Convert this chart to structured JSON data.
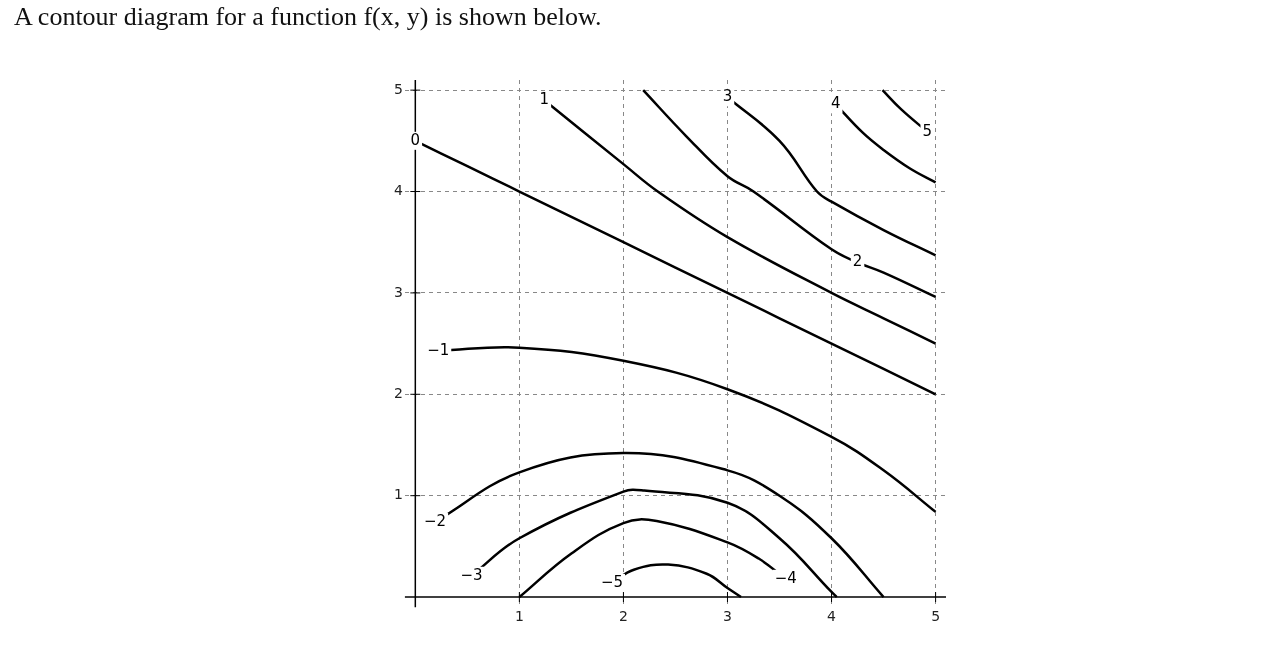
{
  "chart_data": {
    "type": "line",
    "title": "A contour diagram for a function f(x, y) is shown below.",
    "xlim": [
      -0.1,
      5.1
    ],
    "ylim": [
      -0.1,
      5.1
    ],
    "xticks": [
      1,
      2,
      3,
      4,
      5
    ],
    "yticks": [
      1,
      2,
      3,
      4,
      5
    ],
    "grid": true,
    "legend": false,
    "series": [
      {
        "color": "#000000",
        "x": [
          0,
          0.5,
          1,
          2,
          3,
          4,
          5
        ],
        "values": [
          4.5,
          4.25,
          4,
          3.5,
          3,
          2.5,
          2
        ]
      },
      {
        "color": "#000000",
        "x": [
          1.24,
          2,
          2.33,
          3,
          4,
          4.5,
          5
        ],
        "values": [
          4.9,
          4.27,
          4,
          3.55,
          3,
          2.75,
          2.5
        ]
      },
      {
        "color": "#000000",
        "x": [
          2.19,
          2.6,
          3,
          3.25,
          4,
          4.25,
          4.5,
          5
        ],
        "values": [
          5,
          4.55,
          4.15,
          4,
          3.43,
          3.3,
          3.2,
          2.96
        ]
      },
      {
        "color": "#000000",
        "x": [
          3,
          3.5,
          3.86,
          4,
          4.5,
          5
        ],
        "values": [
          4.93,
          4.5,
          4,
          3.9,
          3.62,
          3.37
        ]
      },
      {
        "color": "#000000",
        "x": [
          4.04,
          4.3,
          4.5,
          4.75,
          5
        ],
        "values": [
          4.86,
          4.58,
          4.41,
          4.23,
          4.09
        ]
      },
      {
        "color": "#000000",
        "x": [
          4.49,
          4.67,
          4.92
        ],
        "values": [
          5,
          4.81,
          4.59
        ]
      },
      {
        "color": "#000000",
        "x": [
          0.22,
          1,
          2,
          3,
          4,
          4.5,
          5
        ],
        "values": [
          2.43,
          2.46,
          2.33,
          2.05,
          1.58,
          1.25,
          0.84
        ]
      },
      {
        "color": "#000000",
        "x": [
          0.19,
          1,
          2,
          3,
          3.5,
          4,
          4.5
        ],
        "values": [
          0.74,
          1.23,
          1.42,
          1.25,
          1,
          0.58,
          0
        ]
      },
      {
        "color": "#000000",
        "x": [
          0.54,
          1,
          2,
          2.2,
          3,
          3.5,
          4,
          4.05
        ],
        "values": [
          0.21,
          0.58,
          1.04,
          1.05,
          0.93,
          0.58,
          0.05,
          0
        ]
      },
      {
        "color": "#000000",
        "x": [
          1,
          1.5,
          2,
          2.32,
          3,
          3.3,
          3.56
        ],
        "values": [
          0,
          0.43,
          0.73,
          0.75,
          0.54,
          0.38,
          0.18
        ]
      },
      {
        "color": "#000000",
        "x": [
          1.89,
          2.1,
          2.43,
          2.8,
          3,
          3.13
        ],
        "values": [
          0.14,
          0.27,
          0.32,
          0.23,
          0.09,
          0
        ]
      }
    ],
    "annotations": [
      {
        "text": "0",
        "x": 0,
        "y": 4.5
      },
      {
        "text": "1",
        "x": 1.24,
        "y": 4.9
      },
      {
        "text": "2",
        "x": 4.25,
        "y": 3.3
      },
      {
        "text": "3",
        "x": 3,
        "y": 4.93
      },
      {
        "text": "4",
        "x": 4.04,
        "y": 4.86
      },
      {
        "text": "5",
        "x": 4.92,
        "y": 4.59
      },
      {
        "text": "−1",
        "x": 0.22,
        "y": 2.43
      },
      {
        "text": "−2",
        "x": 0.19,
        "y": 0.74
      },
      {
        "text": "−3",
        "x": 0.54,
        "y": 0.21
      },
      {
        "text": "−4",
        "x": 3.56,
        "y": 0.18
      },
      {
        "text": "−5",
        "x": 1.89,
        "y": 0.14
      }
    ]
  }
}
